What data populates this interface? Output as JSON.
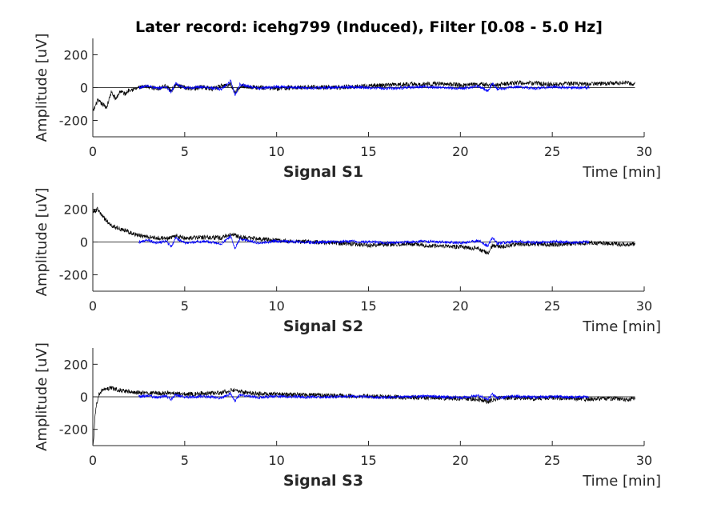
{
  "chart_data": {
    "type": "line",
    "title": "Later record: icehg799 (Induced), Filter [0.08 - 5.0 Hz]",
    "panels": [
      {
        "name": "Signal S1",
        "xlabel": "Time [min]",
        "ylabel": "Amplitude [uV]",
        "xlim": [
          0,
          30
        ],
        "ylim": [
          -300,
          300
        ],
        "xticks": [
          0,
          5,
          10,
          15,
          20,
          25,
          30
        ],
        "yticks": [
          -200,
          0,
          200
        ],
        "series": [
          {
            "color": "#000000",
            "x": [
              0,
              0.25,
              0.5,
              0.75,
              1,
              1.25,
              1.5,
              1.75,
              2,
              2.25,
              2.5,
              3,
              3.5,
              4,
              4.25,
              4.5,
              5,
              5.5,
              6,
              6.5,
              7,
              7.5,
              7.75,
              8,
              8.5,
              9,
              10,
              11,
              12,
              13,
              14,
              15,
              16,
              17,
              18,
              19,
              20,
              21,
              22,
              23,
              24,
              25,
              26,
              27,
              28,
              29,
              29.5
            ],
            "y": [
              -150,
              -80,
              -100,
              -120,
              -30,
              -70,
              -20,
              -40,
              -10,
              -10,
              0,
              5,
              -5,
              10,
              -20,
              15,
              0,
              -5,
              5,
              -10,
              10,
              20,
              -30,
              10,
              5,
              0,
              -5,
              0,
              5,
              0,
              5,
              10,
              15,
              20,
              20,
              25,
              15,
              20,
              15,
              30,
              25,
              20,
              25,
              20,
              25,
              30,
              20
            ]
          },
          {
            "color": "#0000ff",
            "x": [
              2.5,
              3,
              3.5,
              4,
              4.25,
              4.5,
              5,
              6,
              7,
              7.5,
              7.75,
              8,
              9,
              10,
              12,
              14,
              16,
              18,
              20,
              21,
              21.5,
              21.75,
              22,
              23,
              24,
              25,
              26,
              27
            ],
            "y": [
              0,
              10,
              -5,
              5,
              -30,
              25,
              -5,
              5,
              -10,
              40,
              -45,
              20,
              -5,
              5,
              -3,
              4,
              -5,
              5,
              -5,
              8,
              -20,
              25,
              -10,
              5,
              -4,
              3,
              -2,
              0
            ]
          }
        ]
      },
      {
        "name": "Signal S2",
        "xlabel": "Time [min]",
        "ylabel": "Amplitude [uV]",
        "xlim": [
          0,
          30
        ],
        "ylim": [
          -300,
          300
        ],
        "xticks": [
          0,
          5,
          10,
          15,
          20,
          25,
          30
        ],
        "yticks": [
          -200,
          0,
          200
        ],
        "series": [
          {
            "color": "#000000",
            "x": [
              0,
              0.25,
              0.5,
              0.75,
              1,
              1.5,
              2,
              2.5,
              3,
              4,
              4.5,
              5,
              6,
              7,
              7.5,
              8,
              9,
              10,
              11,
              12,
              13,
              14,
              15,
              16,
              17,
              18,
              19,
              20,
              21,
              21.5,
              21.75,
              22,
              23,
              24,
              25,
              26,
              27,
              28,
              29,
              29.5
            ],
            "y": [
              180,
              200,
              160,
              130,
              100,
              80,
              60,
              40,
              30,
              20,
              40,
              20,
              30,
              25,
              50,
              30,
              20,
              10,
              5,
              0,
              -5,
              -10,
              -20,
              -15,
              -10,
              -20,
              -25,
              -30,
              -40,
              -70,
              -20,
              -30,
              -15,
              -10,
              -15,
              -10,
              -5,
              -10,
              -15,
              -10
            ]
          },
          {
            "color": "#0000ff",
            "x": [
              2.5,
              3,
              3.5,
              4,
              4.25,
              4.5,
              5,
              6,
              7,
              7.5,
              7.75,
              8,
              9,
              10,
              12,
              14,
              16,
              18,
              20,
              21,
              21.5,
              21.75,
              22,
              23,
              24,
              25,
              26,
              27
            ],
            "y": [
              0,
              10,
              -5,
              5,
              -30,
              25,
              -5,
              5,
              -10,
              35,
              -40,
              20,
              -5,
              5,
              -3,
              4,
              -5,
              5,
              -5,
              8,
              -25,
              30,
              -10,
              5,
              -4,
              3,
              -2,
              0
            ]
          }
        ]
      },
      {
        "name": "Signal S3",
        "xlabel": "Time [min]",
        "ylabel": "Amplitude [uV]",
        "xlim": [
          0,
          30
        ],
        "ylim": [
          -300,
          300
        ],
        "xticks": [
          0,
          5,
          10,
          15,
          20,
          25,
          30
        ],
        "yticks": [
          -200,
          0,
          200
        ],
        "series": [
          {
            "color": "#000000",
            "x": [
              0,
              0.05,
              0.1,
              0.2,
              0.3,
              0.5,
              0.75,
              1,
              1.5,
              2,
              3,
              4,
              5,
              6,
              7,
              7.5,
              8,
              9,
              10,
              12,
              14,
              16,
              18,
              20,
              21,
              21.5,
              21.75,
              22,
              23,
              24,
              25,
              26,
              27,
              28,
              29,
              29.5
            ],
            "y": [
              -300,
              -250,
              -150,
              -50,
              10,
              40,
              50,
              55,
              40,
              30,
              20,
              25,
              15,
              20,
              25,
              40,
              30,
              20,
              15,
              10,
              5,
              0,
              -5,
              -10,
              -15,
              -30,
              -20,
              -10,
              -5,
              -10,
              -5,
              -10,
              -15,
              -10,
              -15,
              -10
            ]
          },
          {
            "color": "#0000ff",
            "x": [
              2.5,
              3,
              3.5,
              4,
              4.25,
              4.5,
              5,
              6,
              7,
              7.5,
              7.75,
              8,
              9,
              10,
              12,
              14,
              16,
              18,
              20,
              21,
              21.5,
              21.75,
              22,
              23,
              24,
              25,
              26,
              27
            ],
            "y": [
              0,
              8,
              -4,
              4,
              -15,
              12,
              -4,
              4,
              -8,
              20,
              -25,
              12,
              -4,
              4,
              -3,
              3,
              -4,
              4,
              -4,
              6,
              -15,
              15,
              -6,
              4,
              -3,
              2,
              -2,
              0
            ]
          }
        ]
      }
    ]
  }
}
